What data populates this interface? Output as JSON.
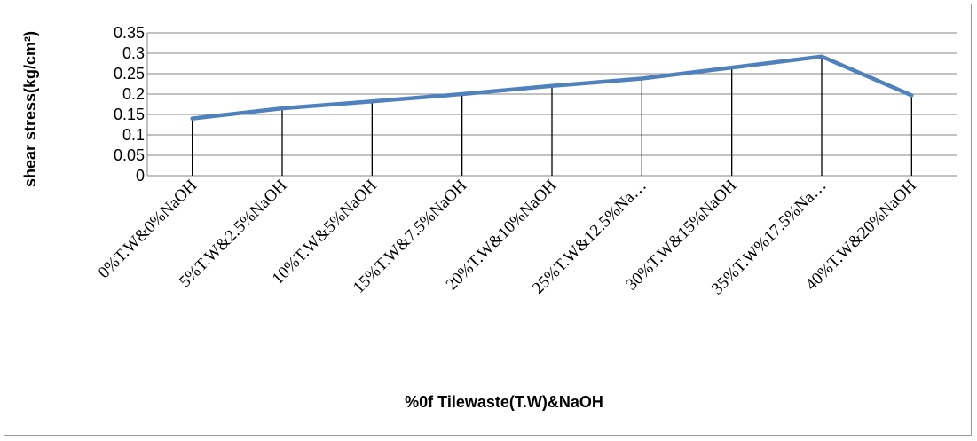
{
  "chart_data": {
    "type": "line",
    "title": "",
    "xlabel": "%0f Tilewaste(T.W)&NaOH",
    "ylabel": "shear stress(kg/cm²)",
    "categories": [
      "0%T.W&0%NaOH",
      "5%T.W&2.5%NaOH",
      "10%T.W&5%NaOH",
      "15%T.W&7.5%NaOH",
      "20%T.W&10%NaOH",
      "25%T.W&12.5%Na…",
      "30%T.W&15%NaOH",
      "35%T.W%17.5%Na…",
      "40%T.W&20%NaOH"
    ],
    "series": [
      {
        "values": [
          0.14,
          0.165,
          0.182,
          0.2,
          0.22,
          0.238,
          0.265,
          0.292,
          0.197
        ]
      }
    ],
    "ylim": [
      0,
      0.35
    ],
    "yticks": [
      "0",
      "0.05",
      "0.1",
      "0.15",
      "0.2",
      "0.25",
      "0.3",
      "0.35"
    ],
    "drop_lines": true,
    "grid": true,
    "legend": "none",
    "colors": {
      "series": "#4f81bd",
      "grid": "#868686",
      "drop_line": "#000000"
    }
  }
}
